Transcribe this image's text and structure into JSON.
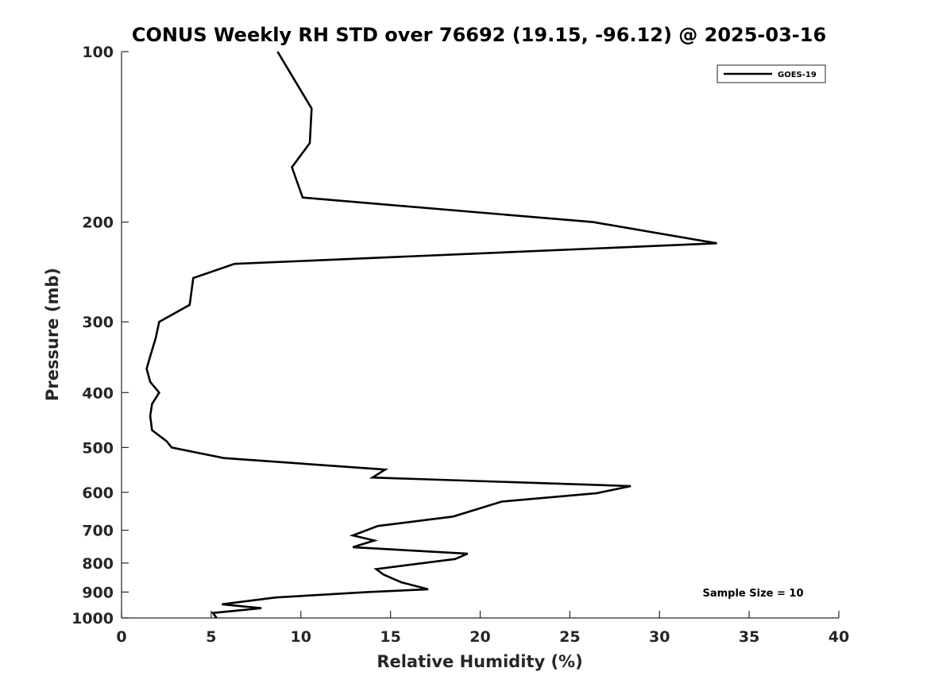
{
  "chart_data": {
    "type": "line",
    "title": "CONUS Weekly RH STD over 76692 (19.15, -96.12) @ 2025-03-16",
    "xlabel": "Relative Humidity (%)",
    "ylabel": "Pressure (mb)",
    "xlim": [
      0,
      40
    ],
    "ylim": [
      1000,
      100
    ],
    "yscale": "log",
    "xticks": [
      "0",
      "5",
      "10",
      "15",
      "20",
      "25",
      "30",
      "35",
      "40"
    ],
    "yticks": [
      "100",
      "200",
      "300",
      "400",
      "500",
      "600",
      "700",
      "800",
      "900",
      "1000"
    ],
    "grid": false,
    "legend": {
      "position": "top-right",
      "entries": [
        "GOES-19"
      ]
    },
    "annotations": [
      {
        "text": "Sample Size = 10",
        "position": "bottom-right"
      }
    ],
    "series": [
      {
        "name": "GOES-19",
        "color": "#000000",
        "points": [
          [
            8.7,
            100
          ],
          [
            10.6,
            126
          ],
          [
            10.5,
            145
          ],
          [
            9.5,
            160
          ],
          [
            10.1,
            181
          ],
          [
            26.3,
            200
          ],
          [
            33.2,
            218
          ],
          [
            6.3,
            237
          ],
          [
            4.0,
            251
          ],
          [
            3.8,
            280
          ],
          [
            2.1,
            300
          ],
          [
            1.9,
            321
          ],
          [
            1.6,
            345
          ],
          [
            1.4,
            363
          ],
          [
            1.6,
            383
          ],
          [
            2.1,
            400
          ],
          [
            1.7,
            419
          ],
          [
            1.6,
            440
          ],
          [
            1.7,
            466
          ],
          [
            2.5,
            487
          ],
          [
            2.8,
            500
          ],
          [
            5.7,
            522
          ],
          [
            14.7,
            547
          ],
          [
            14.0,
            565
          ],
          [
            28.4,
            585
          ],
          [
            26.5,
            602
          ],
          [
            21.2,
            623
          ],
          [
            18.5,
            662
          ],
          [
            14.3,
            688
          ],
          [
            12.9,
            715
          ],
          [
            14.1,
            730
          ],
          [
            12.9,
            750
          ],
          [
            19.3,
            770
          ],
          [
            18.6,
            787
          ],
          [
            14.2,
            820
          ],
          [
            14.6,
            838
          ],
          [
            15.6,
            865
          ],
          [
            17.1,
            890
          ],
          [
            13.7,
            900
          ],
          [
            8.6,
            920
          ],
          [
            5.6,
            946
          ],
          [
            7.8,
            961
          ],
          [
            5.1,
            980
          ],
          [
            5.3,
            1000
          ]
        ]
      }
    ]
  }
}
